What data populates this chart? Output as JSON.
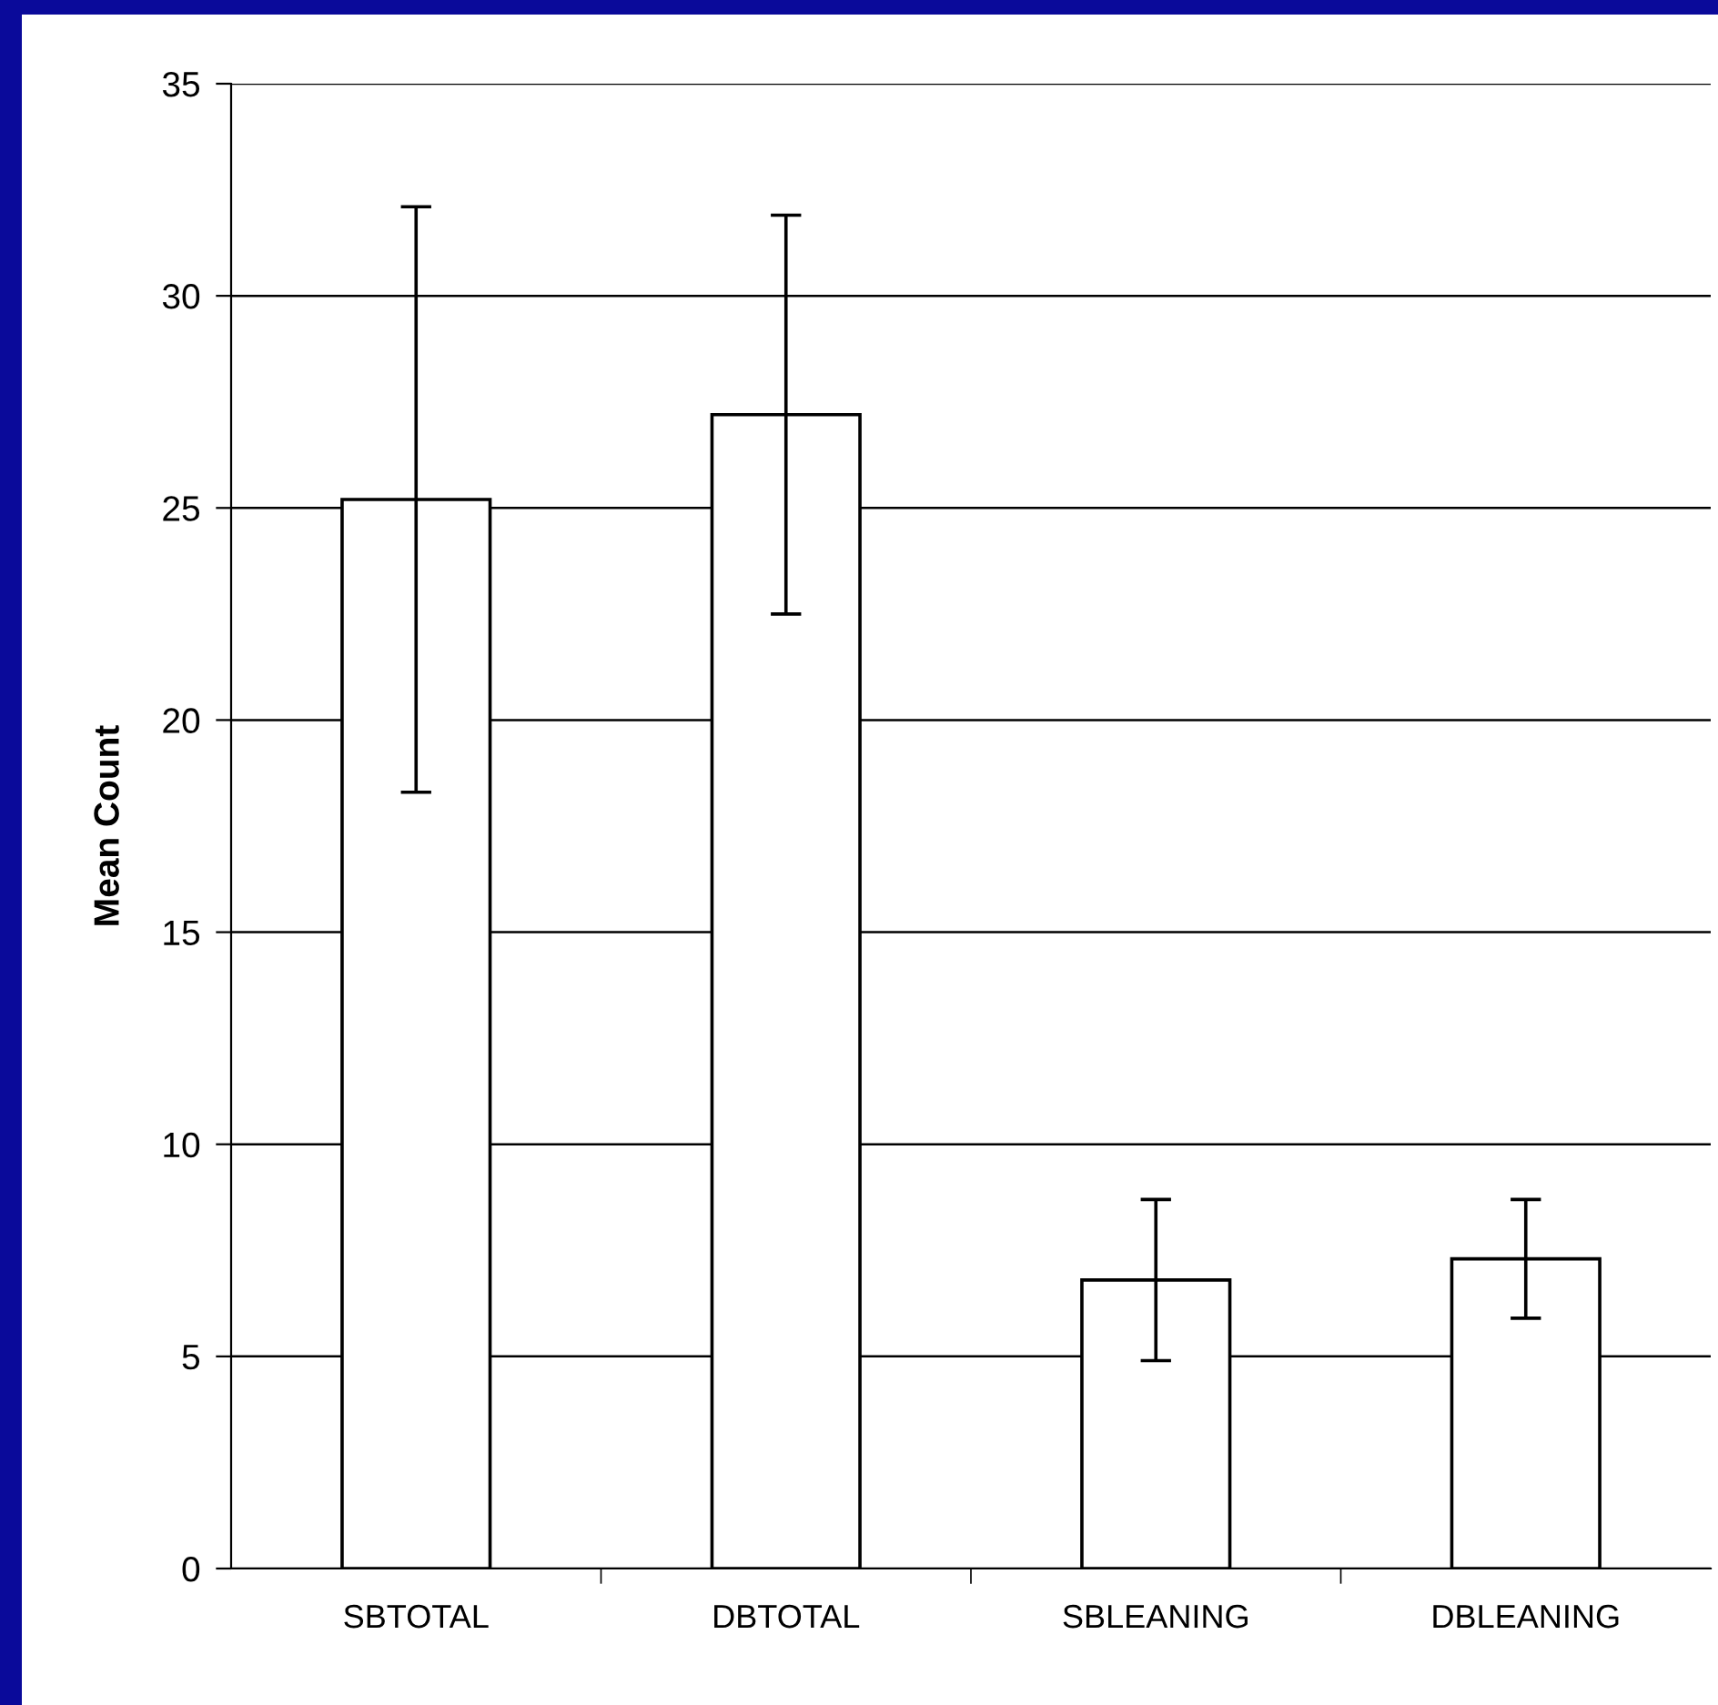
{
  "chart_data": {
    "type": "bar",
    "ylabel": "Mean Count",
    "categories": [
      "SBTOTAL",
      "DBTOTAL",
      "SBLEANING",
      "DBLEANING"
    ],
    "values": [
      25.2,
      27.2,
      6.8,
      7.3
    ],
    "errors": [
      6.9,
      4.7,
      1.9,
      1.4
    ],
    "color": "#ffffff",
    "ylim": [
      0,
      35
    ],
    "yticks": [
      0,
      5,
      10,
      15,
      20,
      25,
      30,
      35
    ],
    "grid": "y"
  }
}
